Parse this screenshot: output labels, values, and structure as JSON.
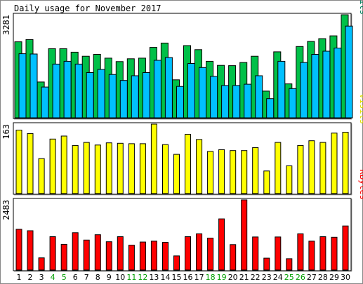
{
  "chart_data": {
    "type": "bar",
    "title": "Daily usage for November 2017",
    "categories": [
      "1",
      "2",
      "3",
      "4",
      "5",
      "6",
      "7",
      "8",
      "9",
      "10",
      "11",
      "12",
      "13",
      "14",
      "15",
      "16",
      "17",
      "18",
      "19",
      "20",
      "21",
      "22",
      "23",
      "24",
      "25",
      "26",
      "27",
      "28",
      "29",
      "30"
    ],
    "weekend_days": [
      "4",
      "5",
      "11",
      "12",
      "18",
      "19",
      "25",
      "26"
    ],
    "panels": [
      {
        "name": "pages-files-hits",
        "max_label": "3281",
        "ymax": 3281,
        "axis_labels": [
          {
            "text": "Pages",
            "color": "#00805c"
          },
          {
            "text": "/",
            "color": "#000000"
          },
          {
            "text": "Files",
            "color": "#00c0ff"
          },
          {
            "text": "/",
            "color": "#000000"
          },
          {
            "text": "Hits",
            "color": "#00805c"
          }
        ],
        "series": [
          {
            "name": "Hits",
            "color": "#00c048",
            "values": [
              2420,
              2490,
              1140,
              2200,
              2200,
              2090,
              1960,
              2020,
              1900,
              1790,
              1880,
              1900,
              2240,
              2380,
              1210,
              2300,
              2170,
              1800,
              1670,
              1660,
              1760,
              1960,
              850,
              2100,
              1080,
              2270,
              2430,
              2520,
              2610,
              3281
            ]
          },
          {
            "name": "Files",
            "color": "#00c0ff",
            "values": [
              2040,
              2030,
              980,
              1710,
              1800,
              1710,
              1440,
              1540,
              1380,
              1190,
              1340,
              1440,
              1830,
              1920,
              1000,
              1730,
              1600,
              1320,
              1030,
              1030,
              1070,
              1340,
              610,
              1800,
              930,
              1760,
              2020,
              2120,
              2220,
              2920
            ]
          }
        ]
      },
      {
        "name": "visits",
        "max_label": "163",
        "ymax": 163,
        "axis_labels": [
          {
            "text": "Visits",
            "color": "#e0e000"
          }
        ],
        "series": [
          {
            "name": "Visits",
            "color": "#ffff00",
            "values": [
              149,
              141,
              82,
              128,
              135,
              113,
              120,
              114,
              119,
              118,
              117,
              117,
              163,
              115,
              92,
              139,
              127,
              99,
              103,
              101,
              101,
              108,
              53,
              120,
              65,
              113,
              124,
              120,
              142,
              144
            ]
          }
        ]
      },
      {
        "name": "kbytes",
        "max_label": "2483",
        "ymax": 2483,
        "axis_labels": [
          {
            "text": "KBytes",
            "color": "#ff0000"
          }
        ],
        "series": [
          {
            "name": "KBytes",
            "color": "#ff0000",
            "values": [
              1440,
              1390,
              430,
              1180,
              910,
              1320,
              1060,
              1250,
              1000,
              1180,
              880,
              990,
              1020,
              980,
              500,
              1180,
              1280,
              1130,
              1810,
              900,
              2483,
              1170,
              420,
              1170,
              400,
              1280,
              1020,
              1180,
              1160,
              1560
            ]
          }
        ]
      }
    ]
  }
}
